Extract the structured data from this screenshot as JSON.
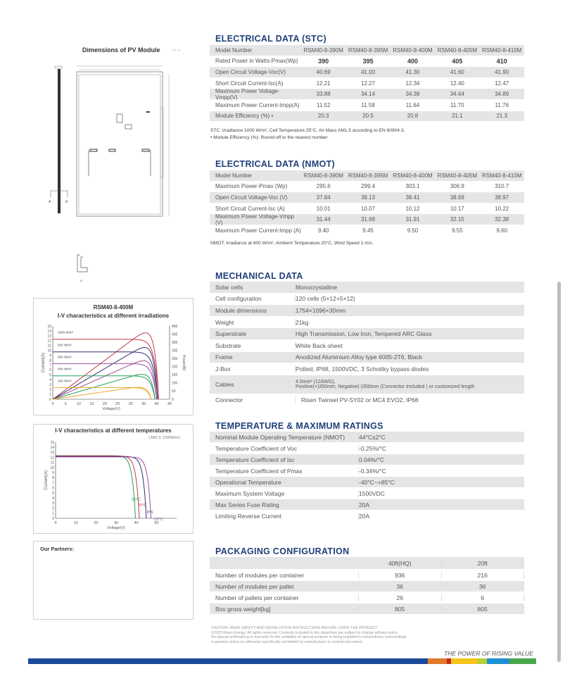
{
  "dims": {
    "title": "Dimensions of PV Module",
    "unit": "Unit: mm"
  },
  "stc": {
    "title": "ELECTRICAL DATA (STC)",
    "header": [
      "Model Number",
      "RSM40-8-390M",
      "RSM40-8-395M",
      "RSM40-8-400M",
      "RSM40-8-405M",
      "RSM40-8-410M"
    ],
    "rows": [
      [
        "Rated Power in Watts-Pmax(Wp)",
        "390",
        "395",
        "400",
        "405",
        "410"
      ],
      [
        "Open Circuit Voltage-Voc(V)",
        "40.69",
        "41.00",
        "41.30",
        "41.60",
        "41.90"
      ],
      [
        "Short Circuit Current-Isc(A)",
        "12.21",
        "12.27",
        "12.34",
        "12.40",
        "12.47"
      ],
      [
        "Maximum Power Voltage-Vmpp(V)",
        "33.88",
        "34.14",
        "34.39",
        "34.64",
        "34.89"
      ],
      [
        "Maximum Power Current-Impp(A)",
        "11.52",
        "11.58",
        "11.64",
        "11.70",
        "11.76"
      ],
      [
        "Module Efficiency (%) •",
        "20.3",
        "20.5",
        "20.8",
        "21.1",
        "21.3"
      ]
    ],
    "note1": "STC: Irradiance 1000 W/m², Cell Temperature 25°C, Air Mass AM1.5 according to EN 60904-3.",
    "note2": "• Module Efficiency (%): Round-off to the nearest number"
  },
  "nmot": {
    "title": "ELECTRICAL DATA (NMOT)",
    "header": [
      "Model Number",
      "RSM40-8-390M",
      "RSM40-8-395M",
      "RSM40-8-400M",
      "RSM40-8-405M",
      "RSM40-8-410M"
    ],
    "rows": [
      [
        "Maximum Power-Pmax (Wp)",
        "295.6",
        "299.4",
        "303.1",
        "306.9",
        "310.7"
      ],
      [
        "Open Circuit Voltage-Voc (V)",
        "37.84",
        "38.13",
        "38.41",
        "38.69",
        "38.97"
      ],
      [
        "Short Circuit Current-Isc (A)",
        "10.01",
        "10.07",
        "10.12",
        "10.17",
        "10.22"
      ],
      [
        "Maximum Power Voltage-Vmpp (V)",
        "31.44",
        "31.68",
        "31.91",
        "32.15",
        "32.38"
      ],
      [
        "Maximum Power Current-Impp (A)",
        "9.40",
        "9.45",
        "9.50",
        "9.55",
        "9.60"
      ]
    ],
    "note": "NMOT: Irradiance at 800 W/m², Ambient Temperature 20°C, Wind Speed 1 m/s."
  },
  "mech": {
    "title": "MECHANICAL DATA",
    "rows": [
      [
        "Solar cells",
        "Monocrystalline"
      ],
      [
        "Cell configuration",
        "120 cells (5×12+5×12)"
      ],
      [
        "Module dimensions",
        "1754×1096×30mm"
      ],
      [
        "Weight",
        "21kg"
      ],
      [
        "Superstrate",
        "High Transmission, Low Iron, Tempered ARC Glass"
      ],
      [
        "Substrate",
        "White Back-sheet"
      ],
      [
        "Frame",
        "Anodized Aluminium Alloy type 6005-2T6, Black"
      ],
      [
        "J-Box",
        "Potted, IP68, 1500VDC, 3 Schottky bypass diodes"
      ]
    ],
    "cables_label": "Cables",
    "cables_1": "4.0mm² (12AWG),",
    "cables_2": "Positive(+)350mm, Negative(-)350mm (Connector Included ) or customized length",
    "connector_label": "Connector",
    "connector_value": "Risen Twinsel PV-SY02 or MC4 EVO2, IP68"
  },
  "temp": {
    "title": "TEMPERATURE & MAXIMUM RATINGS",
    "rows": [
      [
        "Nominal Module Operating Temperature (NMOT)",
        "44°C±2°C"
      ],
      [
        "Temperature Coefficient of Voc",
        "-0.25%/°C"
      ],
      [
        "Temperature Coefficient of Isc",
        "0.04%/°C"
      ],
      [
        "Temperature Coefficient of Pmax",
        "-0.34%/°C"
      ],
      [
        "Operational Temperature",
        "-40°C~+85°C"
      ],
      [
        "Maximum System Voltage",
        "1500VDC"
      ],
      [
        "Max Series Fuse Rating",
        "20A"
      ],
      [
        "Limiting Reverse Current",
        "20A"
      ]
    ]
  },
  "pack": {
    "title": "PACKAGING CONFIGURATION",
    "header": [
      "",
      "40ft(HQ)",
      "20ft"
    ],
    "rows": [
      [
        "Number of modules per container",
        "936",
        "216"
      ],
      [
        "Number of modules per pallet",
        "36",
        "36"
      ],
      [
        "Number of pallets per container",
        "26",
        "6"
      ],
      [
        "Box gross weight[kg]",
        "805",
        "805"
      ]
    ]
  },
  "chart1": {
    "model": "RSM40-8-400M",
    "title": "I-V characteristics at different irradiations",
    "xlabel": "Voltage(V)",
    "ylabel": "Current(A)",
    "y2label": "Power(W)",
    "xticks": [
      "0",
      "5",
      "10",
      "15",
      "20",
      "25",
      "30",
      "35",
      "40",
      "45"
    ],
    "yticks": [
      "0",
      "1",
      "2",
      "3",
      "4",
      "5",
      "6",
      "7",
      "8",
      "9",
      "10",
      "11",
      "12",
      "13",
      "14",
      "15"
    ],
    "y2ticks": [
      "0",
      "50",
      "100",
      "150",
      "200",
      "250",
      "300",
      "350",
      "400",
      "450"
    ],
    "series": [
      {
        "name": "1000 W/m²",
        "color": "#c8394a",
        "isc": 12.3,
        "voc": 40.8
      },
      {
        "name": "800 W/m²",
        "color": "#2d2f72",
        "isc": 9.7,
        "voc": 40.4
      },
      {
        "name": "600 W/m²",
        "color": "#9b4f94",
        "isc": 7.3,
        "voc": 40
      },
      {
        "name": "400 W/m²",
        "color": "#22a05a",
        "isc": 4.8,
        "voc": 39.4
      },
      {
        "name": "200 W/m²",
        "color": "#e7a92a",
        "isc": 2.4,
        "voc": 38
      }
    ]
  },
  "chart2": {
    "title": "I-V characteristics at different temperatures",
    "condition": "( AM1.5, 1000W/m²)",
    "xlabel": "Voltage(V)",
    "ylabel": "Current(A)",
    "xticks": [
      "0",
      "10",
      "20",
      "30",
      "40",
      "50"
    ],
    "yticks": [
      "0",
      "1",
      "2",
      "3",
      "4",
      "5",
      "6",
      "7",
      "8",
      "9",
      "10",
      "11",
      "12",
      "13",
      "14",
      "15"
    ],
    "series": [
      {
        "name": "50°C",
        "color": "#22a05a",
        "isc": 12.35,
        "voc": 39.6
      },
      {
        "name": "25°C",
        "color": "#c8394a",
        "isc": 12.3,
        "voc": 41.5
      },
      {
        "name": "0°C",
        "color": "#2d2f72",
        "isc": 12.2,
        "voc": 45
      },
      {
        "name": "-10°C",
        "color": "#9b4f94",
        "isc": 12.1,
        "voc": 47.3
      }
    ]
  },
  "partners": {
    "title": "Our Partners:"
  },
  "footer": {
    "caution": "CAUTION: READ SAFETY AND INSTALLATION INSTRUCTIONS BEFORE USING THE PRODUCT.",
    "line2": "©2022 Risen Energy. All rights reserved. Contents included in this datasheet are subject to change without notice.",
    "line3": "No special undertaking or warranty for the suitability of special purpose or being installed in extraordinary surroundings",
    "line4": "is granted unless as otherwise specifically committed by manufacturer in contract document.",
    "tagline": "THE POWER OF RISING VALUE"
  }
}
